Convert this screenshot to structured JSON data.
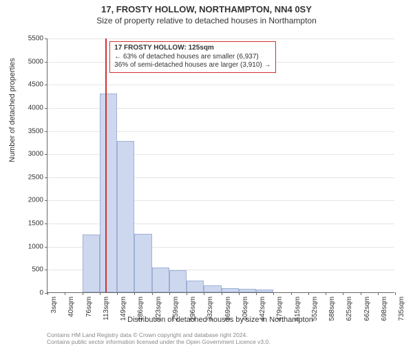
{
  "title": "17, FROSTY HOLLOW, NORTHAMPTON, NN4 0SY",
  "subtitle": "Size of property relative to detached houses in Northampton",
  "y_axis_label": "Number of detached properties",
  "x_axis_label": "Distribution of detached houses by size in Northampton",
  "chart": {
    "type": "histogram",
    "background_color": "#ffffff",
    "grid_color": "#e5e5e5",
    "axis_color": "#666666",
    "bar_fill": "#cdd8ef",
    "bar_border": "#9fb0d6",
    "marker_color": "#d03030",
    "ylim": [
      0,
      5500
    ],
    "ytick_step": 500,
    "yticks": [
      0,
      500,
      1000,
      1500,
      2000,
      2500,
      3000,
      3500,
      4000,
      4500,
      5000,
      5500
    ],
    "xticks": [
      "3sqm",
      "40sqm",
      "76sqm",
      "113sqm",
      "149sqm",
      "186sqm",
      "223sqm",
      "259sqm",
      "296sqm",
      "332sqm",
      "369sqm",
      "406sqm",
      "442sqm",
      "479sqm",
      "515sqm",
      "552sqm",
      "588sqm",
      "625sqm",
      "662sqm",
      "698sqm",
      "735sqm"
    ],
    "xmin": 3,
    "xmax": 735,
    "values": [
      0,
      0,
      1250,
      4300,
      3270,
      1260,
      540,
      480,
      250,
      150,
      90,
      70,
      60,
      0,
      0,
      0,
      0,
      0,
      0,
      0
    ],
    "marker_x": 125,
    "bar_count": 20
  },
  "annotation": {
    "line1": "17 FROSTY HOLLOW: 125sqm",
    "line2": "← 63% of detached houses are smaller (6,937)",
    "line3": "36% of semi-detached houses are larger (3,910) →"
  },
  "footer": {
    "line1": "Contains HM Land Registry data © Crown copyright and database right 2024.",
    "line2": "Contains public sector information licensed under the Open Government Licence v3.0."
  }
}
